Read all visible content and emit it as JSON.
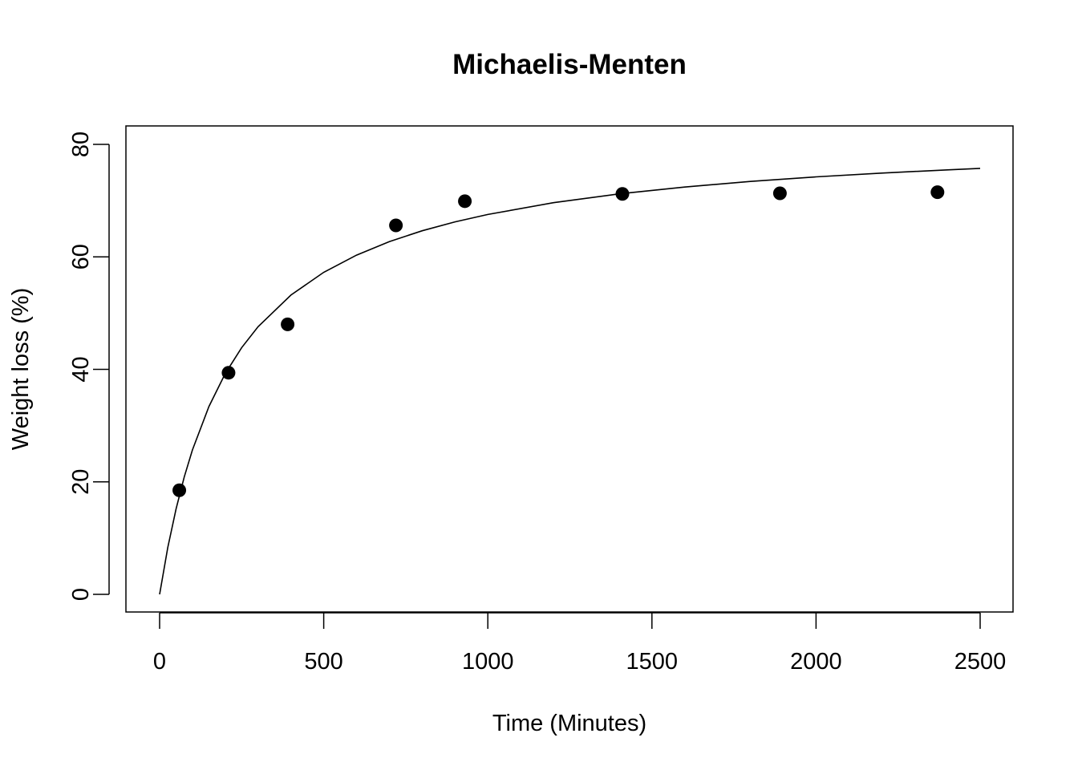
{
  "chart_data": {
    "type": "scatter",
    "title": "Michaelis-Menten",
    "xlabel": "Time (Minutes)",
    "ylabel": "Weight loss (%)",
    "xlim": [
      0,
      2500
    ],
    "ylim": [
      0,
      80
    ],
    "xticks": [
      0,
      500,
      1000,
      1500,
      2000,
      2500
    ],
    "xtick_labels": [
      "0",
      "500",
      "1000",
      "1500",
      "2000",
      "2500"
    ],
    "yticks": [
      0,
      20,
      40,
      60,
      80
    ],
    "ytick_labels": [
      "0",
      "20",
      "40",
      "60",
      "80"
    ],
    "grid": false,
    "legend": "none",
    "points": {
      "x": [
        60,
        210,
        390,
        720,
        930,
        1410,
        1890,
        2370
      ],
      "y": [
        18.5,
        39.4,
        48.0,
        65.6,
        69.9,
        71.2,
        71.3,
        71.5
      ]
    },
    "fitted_curve": {
      "model": "Michaelis-Menten",
      "x": [
        0,
        25,
        50,
        75,
        100,
        150,
        200,
        250,
        300,
        400,
        500,
        600,
        700,
        800,
        900,
        1000,
        1200,
        1400,
        1600,
        1800,
        2000,
        2200,
        2400,
        2500
      ],
      "y": [
        0,
        8.34,
        15.17,
        20.86,
        25.67,
        33.37,
        39.24,
        43.86,
        47.59,
        53.2,
        57.26,
        60.31,
        62.71,
        64.64,
        66.22,
        67.54,
        69.63,
        71.2,
        72.42,
        73.41,
        74.22,
        74.9,
        75.47,
        75.73
      ],
      "color": "#000000"
    },
    "point_color": "#000000"
  }
}
